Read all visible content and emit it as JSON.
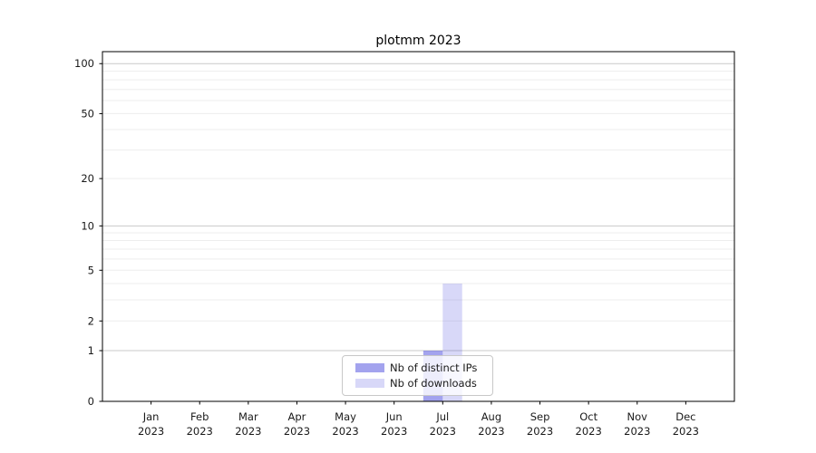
{
  "figure": {
    "title": "plotmm 2023",
    "background": "#ffffff"
  },
  "chart_data": {
    "type": "bar",
    "title": "plotmm 2023",
    "categories": [
      "Jan 2023",
      "Feb 2023",
      "Mar 2023",
      "Apr 2023",
      "May 2023",
      "Jun 2023",
      "Jul 2023",
      "Aug 2023",
      "Sep 2023",
      "Oct 2023",
      "Nov 2023",
      "Dec 2023"
    ],
    "series": [
      {
        "name": "Nb of distinct IPs",
        "color": "rgba(72,72,222,0.5)",
        "values": [
          0,
          0,
          0,
          0,
          0,
          0,
          1,
          0,
          0,
          0,
          0,
          0
        ]
      },
      {
        "name": "Nb of downloads",
        "color": "rgba(72,72,222,0.21)",
        "values": [
          0,
          0,
          0,
          0,
          0,
          0,
          4,
          0,
          0,
          0,
          0,
          0
        ]
      }
    ],
    "xlabel": "",
    "ylabel": "",
    "yscale": "log1p",
    "ylim": [
      0,
      118
    ],
    "y_tick_labels": [
      0,
      1,
      2,
      5,
      10,
      20,
      50,
      100
    ],
    "y_major_gridlines": [
      1,
      10,
      100
    ],
    "grid": "horizontal",
    "legend_position": "lower center"
  },
  "colors": {
    "spine": "#000000",
    "text": "#1a1a1a",
    "major_grid": "#c9c9c9",
    "minor_grid": "#ededed",
    "legend_border": "#c8c8c8",
    "legend_bg": "rgba(255,255,255,0.8)"
  }
}
